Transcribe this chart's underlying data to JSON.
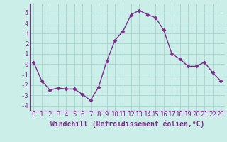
{
  "x": [
    0,
    1,
    2,
    3,
    4,
    5,
    6,
    7,
    8,
    9,
    10,
    11,
    12,
    13,
    14,
    15,
    16,
    17,
    18,
    19,
    20,
    21,
    22,
    23
  ],
  "y": [
    0.2,
    -1.6,
    -2.5,
    -2.3,
    -2.4,
    -2.4,
    -2.9,
    -3.5,
    -2.2,
    0.3,
    2.3,
    3.2,
    4.8,
    5.2,
    4.8,
    4.5,
    3.3,
    1.0,
    0.5,
    -0.2,
    -0.2,
    0.2,
    -0.8,
    -1.6
  ],
  "line_color": "#7b2d8b",
  "marker": "D",
  "markersize": 2.5,
  "linewidth": 1.0,
  "bg_color": "#cceee8",
  "grid_color": "#aad8d2",
  "xlabel": "Windchill (Refroidissement éolien,°C)",
  "xlabel_fontsize": 7,
  "tick_fontsize": 6.5,
  "ylim": [
    -4.5,
    5.8
  ],
  "yticks": [
    -4,
    -3,
    -2,
    -1,
    0,
    1,
    2,
    3,
    4,
    5
  ],
  "xticks": [
    0,
    1,
    2,
    3,
    4,
    5,
    6,
    7,
    8,
    9,
    10,
    11,
    12,
    13,
    14,
    15,
    16,
    17,
    18,
    19,
    20,
    21,
    22,
    23
  ],
  "spine_color": "#7b2d8b",
  "axis_line_color": "#555555"
}
